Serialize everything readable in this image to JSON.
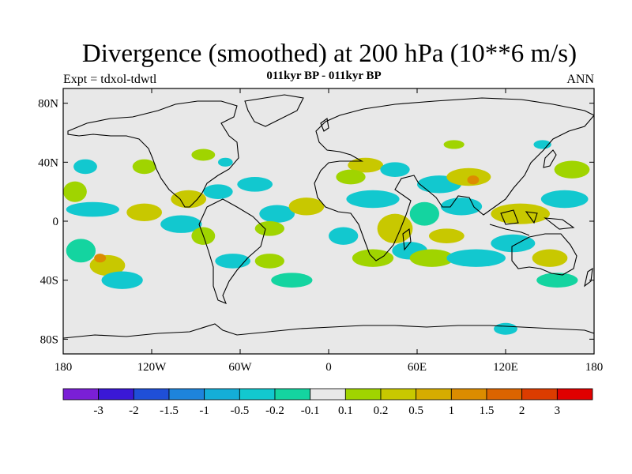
{
  "title": "Divergence (smoothed) at 200 hPa (10**6 m/s)",
  "subtitle": "011kyr BP - 011kyr BP",
  "left_label": "Expt = tdxol-tdwtl",
  "right_label": "ANN",
  "map": {
    "projection": "cylindrical-equidistant",
    "ocean_color": "#e8e8e8",
    "lat_ticks": [
      {
        "value": 80,
        "label": "80N"
      },
      {
        "value": 40,
        "label": "40N"
      },
      {
        "value": 0,
        "label": "0"
      },
      {
        "value": -40,
        "label": "40S"
      },
      {
        "value": -80,
        "label": "80S"
      }
    ],
    "lon_ticks": [
      {
        "value": -180,
        "label": "180"
      },
      {
        "value": -120,
        "label": "120W"
      },
      {
        "value": -60,
        "label": "60W"
      },
      {
        "value": 0,
        "label": "0"
      },
      {
        "value": 60,
        "label": "60E"
      },
      {
        "value": 120,
        "label": "120E"
      },
      {
        "value": 180,
        "label": "180"
      }
    ]
  },
  "colorbar": {
    "colors": [
      "#7a1fd6",
      "#3a18d6",
      "#1f4fd8",
      "#1e84dc",
      "#14aed8",
      "#12c8cf",
      "#14d4a0",
      "#e8e8e8",
      "#a0d400",
      "#c8c800",
      "#d6ac00",
      "#dc8c00",
      "#dc6400",
      "#dc3c00",
      "#e00000"
    ],
    "labels": [
      "-3",
      "-2",
      "-1.5",
      "-1",
      "-0.5",
      "-0.2",
      "-0.1",
      "0.1",
      "0.2",
      "0.5",
      "1",
      "1.5",
      "2",
      "3"
    ]
  },
  "field_blobs": [
    {
      "lon": -168,
      "lat": -20,
      "rx": 10,
      "ry": 8,
      "color": "#14d4a0"
    },
    {
      "lon": -150,
      "lat": -30,
      "rx": 12,
      "ry": 7,
      "color": "#c8c800"
    },
    {
      "lon": -155,
      "lat": -25,
      "rx": 4,
      "ry": 3,
      "color": "#dc8c00"
    },
    {
      "lon": -140,
      "lat": -40,
      "rx": 14,
      "ry": 6,
      "color": "#12c8cf"
    },
    {
      "lon": -172,
      "lat": 20,
      "rx": 8,
      "ry": 7,
      "color": "#a0d400"
    },
    {
      "lon": -160,
      "lat": 8,
      "rx": 18,
      "ry": 5,
      "color": "#12c8cf"
    },
    {
      "lon": -125,
      "lat": 6,
      "rx": 12,
      "ry": 6,
      "color": "#c8c800"
    },
    {
      "lon": -100,
      "lat": -2,
      "rx": 14,
      "ry": 6,
      "color": "#12c8cf"
    },
    {
      "lon": -95,
      "lat": 15,
      "rx": 12,
      "ry": 6,
      "color": "#c8c800"
    },
    {
      "lon": -85,
      "lat": -10,
      "rx": 8,
      "ry": 6,
      "color": "#a0d400"
    },
    {
      "lon": -165,
      "lat": 37,
      "rx": 8,
      "ry": 5,
      "color": "#12c8cf"
    },
    {
      "lon": -125,
      "lat": 37,
      "rx": 8,
      "ry": 5,
      "color": "#a0d400"
    },
    {
      "lon": -75,
      "lat": 20,
      "rx": 10,
      "ry": 5,
      "color": "#12c8cf"
    },
    {
      "lon": -50,
      "lat": 25,
      "rx": 12,
      "ry": 5,
      "color": "#12c8cf"
    },
    {
      "lon": -35,
      "lat": 5,
      "rx": 12,
      "ry": 6,
      "color": "#12c8cf"
    },
    {
      "lon": -40,
      "lat": -5,
      "rx": 10,
      "ry": 5,
      "color": "#a0d400"
    },
    {
      "lon": -65,
      "lat": -27,
      "rx": 12,
      "ry": 5,
      "color": "#12c8cf"
    },
    {
      "lon": -40,
      "lat": -27,
      "rx": 10,
      "ry": 5,
      "color": "#a0d400"
    },
    {
      "lon": -15,
      "lat": 10,
      "rx": 12,
      "ry": 6,
      "color": "#c8c800"
    },
    {
      "lon": -25,
      "lat": -40,
      "rx": 14,
      "ry": 5,
      "color": "#14d4a0"
    },
    {
      "lon": -85,
      "lat": 45,
      "rx": 8,
      "ry": 4,
      "color": "#a0d400"
    },
    {
      "lon": -70,
      "lat": 40,
      "rx": 5,
      "ry": 3,
      "color": "#12c8cf"
    },
    {
      "lon": 25,
      "lat": 38,
      "rx": 12,
      "ry": 5,
      "color": "#c8c800"
    },
    {
      "lon": 15,
      "lat": 30,
      "rx": 10,
      "ry": 5,
      "color": "#a0d400"
    },
    {
      "lon": 45,
      "lat": 35,
      "rx": 10,
      "ry": 5,
      "color": "#12c8cf"
    },
    {
      "lon": 30,
      "lat": 15,
      "rx": 18,
      "ry": 6,
      "color": "#12c8cf"
    },
    {
      "lon": 10,
      "lat": -10,
      "rx": 10,
      "ry": 6,
      "color": "#12c8cf"
    },
    {
      "lon": 45,
      "lat": -5,
      "rx": 12,
      "ry": 10,
      "color": "#c8c800"
    },
    {
      "lon": 30,
      "lat": -25,
      "rx": 14,
      "ry": 6,
      "color": "#a0d400"
    },
    {
      "lon": 55,
      "lat": -20,
      "rx": 12,
      "ry": 6,
      "color": "#12c8cf"
    },
    {
      "lon": 75,
      "lat": 25,
      "rx": 15,
      "ry": 6,
      "color": "#12c8cf"
    },
    {
      "lon": 95,
      "lat": 30,
      "rx": 15,
      "ry": 6,
      "color": "#c8c800"
    },
    {
      "lon": 98,
      "lat": 28,
      "rx": 4,
      "ry": 3,
      "color": "#dc8c00"
    },
    {
      "lon": 65,
      "lat": 5,
      "rx": 10,
      "ry": 8,
      "color": "#14d4a0"
    },
    {
      "lon": 90,
      "lat": 10,
      "rx": 14,
      "ry": 6,
      "color": "#12c8cf"
    },
    {
      "lon": 80,
      "lat": -10,
      "rx": 12,
      "ry": 5,
      "color": "#c8c800"
    },
    {
      "lon": 70,
      "lat": -25,
      "rx": 15,
      "ry": 6,
      "color": "#a0d400"
    },
    {
      "lon": 100,
      "lat": -25,
      "rx": 20,
      "ry": 6,
      "color": "#12c8cf"
    },
    {
      "lon": 130,
      "lat": 5,
      "rx": 20,
      "ry": 7,
      "color": "#c8c800"
    },
    {
      "lon": 125,
      "lat": -15,
      "rx": 15,
      "ry": 6,
      "color": "#12c8cf"
    },
    {
      "lon": 150,
      "lat": -25,
      "rx": 12,
      "ry": 6,
      "color": "#c8c800"
    },
    {
      "lon": 160,
      "lat": 15,
      "rx": 16,
      "ry": 6,
      "color": "#12c8cf"
    },
    {
      "lon": 165,
      "lat": 35,
      "rx": 12,
      "ry": 6,
      "color": "#a0d400"
    },
    {
      "lon": 155,
      "lat": -40,
      "rx": 14,
      "ry": 5,
      "color": "#14d4a0"
    },
    {
      "lon": 120,
      "lat": -73,
      "rx": 8,
      "ry": 4,
      "color": "#12c8cf"
    },
    {
      "lon": 145,
      "lat": 52,
      "rx": 6,
      "ry": 3,
      "color": "#12c8cf"
    },
    {
      "lon": 85,
      "lat": 52,
      "rx": 7,
      "ry": 3,
      "color": "#a0d400"
    }
  ]
}
